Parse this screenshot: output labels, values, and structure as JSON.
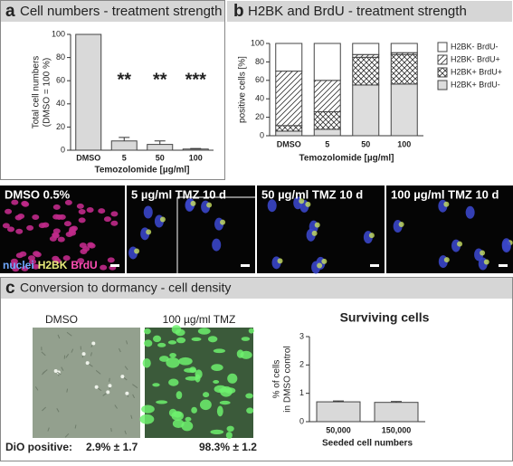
{
  "panel_labels": [
    "a",
    "b",
    "c"
  ],
  "chart_data": [
    {
      "type": "bar",
      "title": "Cell numbers - treatment strength",
      "ylabel": [
        "Total cell numbers",
        "(DMSO = 100 %)"
      ],
      "xlabel": "Temozolomide [µg/ml]",
      "categories": [
        "DMSO",
        "5",
        "50",
        "100"
      ],
      "values": [
        100,
        8,
        5,
        1
      ],
      "errors": [
        null,
        3,
        3,
        0.5
      ],
      "significance": [
        null,
        "**",
        "**",
        "***"
      ],
      "color": "#d9d9d9",
      "ylim": [
        0,
        100
      ],
      "yticks": [
        0,
        20,
        40,
        60,
        80,
        100
      ]
    },
    {
      "type": "stacked_bar",
      "title": "H2BK and BrdU - treatment strength",
      "ylabel": [
        "positive cells [%]"
      ],
      "xlabel": "Temozolomide [µg/ml]",
      "categories": [
        "DMSO",
        "5",
        "50",
        "100"
      ],
      "series": [
        {
          "name": "H2BK+ BrdU-",
          "color": "#dddddd",
          "pattern": "none",
          "values": [
            5,
            7,
            55,
            56
          ]
        },
        {
          "name": "H2BK+ BrdU+",
          "color": "#ffffff",
          "pattern": "cross",
          "values": [
            6,
            19,
            30,
            32
          ]
        },
        {
          "name": "H2BK- BrdU+",
          "color": "#ffffff",
          "pattern": "diagonal",
          "values": [
            59,
            34,
            3,
            2
          ]
        },
        {
          "name": "H2BK- BrdU-",
          "color": "#ffffff",
          "pattern": "none",
          "values": [
            30,
            40,
            12,
            10
          ]
        }
      ],
      "legend": "right",
      "ylim": [
        0,
        100
      ],
      "yticks": [
        0,
        20,
        40,
        60,
        80,
        100
      ]
    },
    {
      "type": "bar",
      "title": "Surviving cells",
      "ylabel": [
        "% of cells",
        "in DMSO control"
      ],
      "xlabel": "Seeded cell numbers",
      "categories": [
        "50,000",
        "150,000"
      ],
      "values": [
        0.7,
        0.68
      ],
      "errors": [
        0.03,
        0.03
      ],
      "color": "#d9d9d9",
      "ylim": [
        0,
        3
      ],
      "yticks": [
        0,
        1,
        2,
        3
      ]
    }
  ],
  "micrographs": [
    "DMSO 0.5%",
    "5 µg/ml TMZ 10 d",
    "50 µg/ml TMZ 10 d",
    "100 µg/ml TMZ 10 d"
  ],
  "stain_legend": [
    {
      "name": "nuclei",
      "color": "#6fa8ff"
    },
    {
      "name": "H2BK",
      "color": "#e8ec7a"
    },
    {
      "name": "BrdU",
      "color": "#ff4fb4"
    }
  ],
  "dormancy": {
    "title": "Conversion to dormancy - cell density",
    "images": [
      "DMSO",
      "100 µg/ml TMZ"
    ],
    "dio_label": "DiO positive:",
    "dio_values": [
      "2.9% ± 1.7",
      "98.3% ± 1.2"
    ]
  }
}
